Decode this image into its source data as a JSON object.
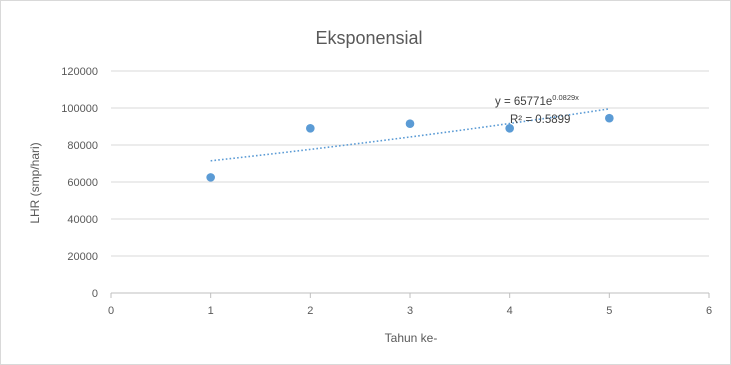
{
  "chart_data": {
    "type": "scatter",
    "title": "Eksponensial",
    "xlabel": "Tahun ke-",
    "ylabel": "LHR (smp/hari)",
    "xlim": [
      0,
      6
    ],
    "ylim": [
      0,
      120000
    ],
    "xticks": [
      0,
      1,
      2,
      3,
      4,
      5,
      6
    ],
    "yticks": [
      0,
      20000,
      40000,
      60000,
      80000,
      100000,
      120000
    ],
    "grid": "horizontal",
    "legend": "none",
    "points": [
      {
        "x": 1,
        "y": 62500
      },
      {
        "x": 2,
        "y": 89000
      },
      {
        "x": 3,
        "y": 91500
      },
      {
        "x": 4,
        "y": 89000
      },
      {
        "x": 5,
        "y": 94500
      }
    ],
    "trendline": {
      "type": "exponential",
      "a": 65771,
      "b": 0.0829,
      "x_range": [
        1,
        5
      ],
      "equation_prefix": "y = 65771e",
      "equation_exponent": "0.0829x",
      "r_squared_label": "R² = 0.5899"
    },
    "colors": {
      "point": "#5b9bd5",
      "trendline": "#5b9bd5",
      "gridline": "#d9d9d9",
      "text": "#595959"
    }
  }
}
